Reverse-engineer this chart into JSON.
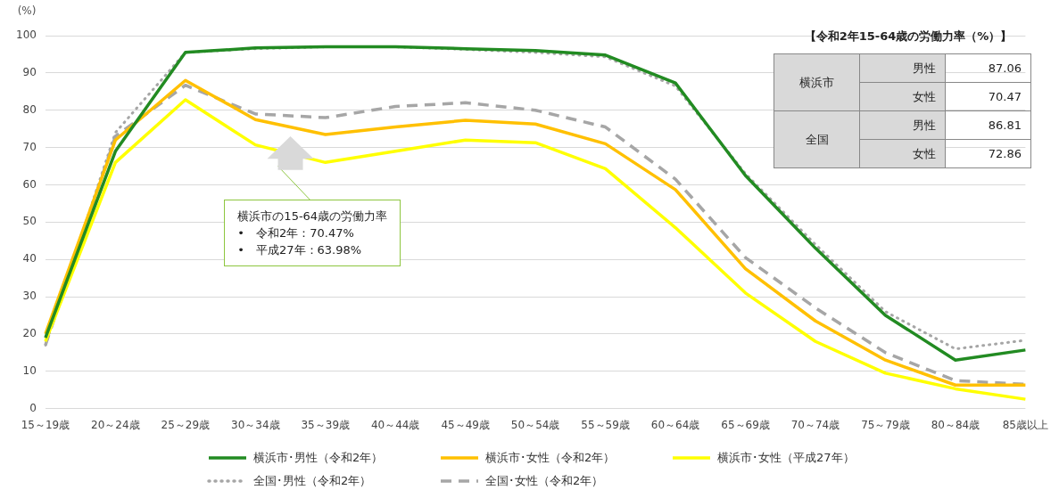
{
  "chart_data": [
    {
      "type": "line",
      "ylabel": "(%)",
      "categories": [
        "15～19歳",
        "20～24歳",
        "25～29歳",
        "30～34歳",
        "35～39歳",
        "40～44歳",
        "45～49歳",
        "50～54歳",
        "55～59歳",
        "60～64歳",
        "65～69歳",
        "70～74歳",
        "75～79歳",
        "80～84歳",
        "85歳以上"
      ],
      "series": [
        {
          "name": "横浜市･男性（令和2年）",
          "color": "#228b22",
          "line_style": "solid",
          "values": [
            19,
            69,
            95.5,
            96.7,
            97,
            97,
            96.5,
            96,
            94.8,
            87.3,
            62.5,
            43,
            25,
            13,
            15.7
          ]
        },
        {
          "name": "横浜市･女性（令和2年）",
          "color": "#ffc000",
          "line_style": "solid",
          "values": [
            20,
            72,
            88,
            77.5,
            73.5,
            75.5,
            77.3,
            76.3,
            71,
            58.7,
            37.5,
            23.5,
            13,
            6.3,
            6.3
          ]
        },
        {
          "name": "横浜市･女性（平成27年）",
          "color": "#ffff00",
          "line_style": "solid",
          "values": [
            18,
            66,
            82.8,
            70.7,
            66,
            69,
            72,
            71.3,
            64.3,
            48.5,
            31,
            18,
            9.5,
            5.3,
            2.5
          ]
        },
        {
          "name": "全国･男性（令和2年）",
          "color": "#a6a6a6",
          "line_style": "dotted",
          "values": [
            17,
            74,
            95.5,
            96.5,
            97,
            97,
            96.3,
            95.5,
            94.3,
            86.5,
            63,
            44,
            26,
            16,
            18.3
          ]
        },
        {
          "name": "全国･女性（令和2年）",
          "color": "#a6a6a6",
          "line_style": "dashed",
          "values": [
            17,
            73,
            86.7,
            79,
            78,
            81,
            82,
            80,
            75.5,
            61.5,
            40.5,
            27,
            15,
            7.5,
            6.5
          ]
        }
      ],
      "ylim": [
        0,
        100
      ],
      "yticks": [
        0,
        10,
        20,
        30,
        40,
        50,
        60,
        70,
        80,
        90,
        100
      ],
      "grid": "y",
      "marker": "none",
      "legend": "bottom",
      "annotations": [
        "横浜市の15-64歳の労働力率\n•　令和2年：70.47%\n•　平成27年：63.98%"
      ]
    },
    {
      "type": "other",
      "title": "【令和2年15-64歳の労働力率（%）】",
      "annotations": [
        "横浜市",
        "男性",
        "87.06",
        "女性",
        "70.47",
        "全国",
        "男性",
        "86.81",
        "女性",
        "72.86"
      ]
    }
  ]
}
